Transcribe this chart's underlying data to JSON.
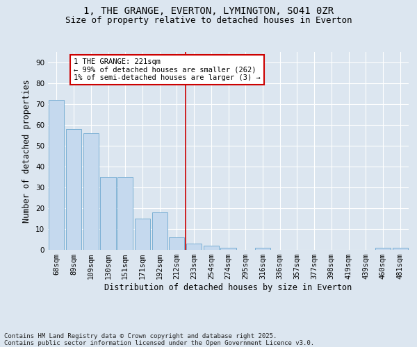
{
  "title": "1, THE GRANGE, EVERTON, LYMINGTON, SO41 0ZR",
  "subtitle": "Size of property relative to detached houses in Everton",
  "xlabel": "Distribution of detached houses by size in Everton",
  "ylabel": "Number of detached properties",
  "categories": [
    "68sqm",
    "89sqm",
    "109sqm",
    "130sqm",
    "151sqm",
    "171sqm",
    "192sqm",
    "212sqm",
    "233sqm",
    "254sqm",
    "274sqm",
    "295sqm",
    "316sqm",
    "336sqm",
    "357sqm",
    "377sqm",
    "398sqm",
    "419sqm",
    "439sqm",
    "460sqm",
    "481sqm"
  ],
  "values": [
    72,
    58,
    56,
    35,
    35,
    15,
    18,
    6,
    3,
    2,
    1,
    0,
    1,
    0,
    0,
    0,
    0,
    0,
    0,
    1,
    1
  ],
  "bar_color": "#c5d9ee",
  "bar_edge_color": "#7aafd4",
  "vline_color": "#cc0000",
  "annotation_text": "1 THE GRANGE: 221sqm\n← 99% of detached houses are smaller (262)\n1% of semi-detached houses are larger (3) →",
  "annotation_box_color": "#ffffff",
  "annotation_edge_color": "#cc0000",
  "ylim": [
    0,
    95
  ],
  "yticks": [
    0,
    10,
    20,
    30,
    40,
    50,
    60,
    70,
    80,
    90
  ],
  "bg_color": "#dce6f0",
  "plot_bg_color": "#dce6f0",
  "footer_text": "Contains HM Land Registry data © Crown copyright and database right 2025.\nContains public sector information licensed under the Open Government Licence v3.0.",
  "title_fontsize": 10,
  "subtitle_fontsize": 9,
  "axis_label_fontsize": 8.5,
  "tick_fontsize": 7.5,
  "annotation_fontsize": 7.5,
  "footer_fontsize": 6.5
}
